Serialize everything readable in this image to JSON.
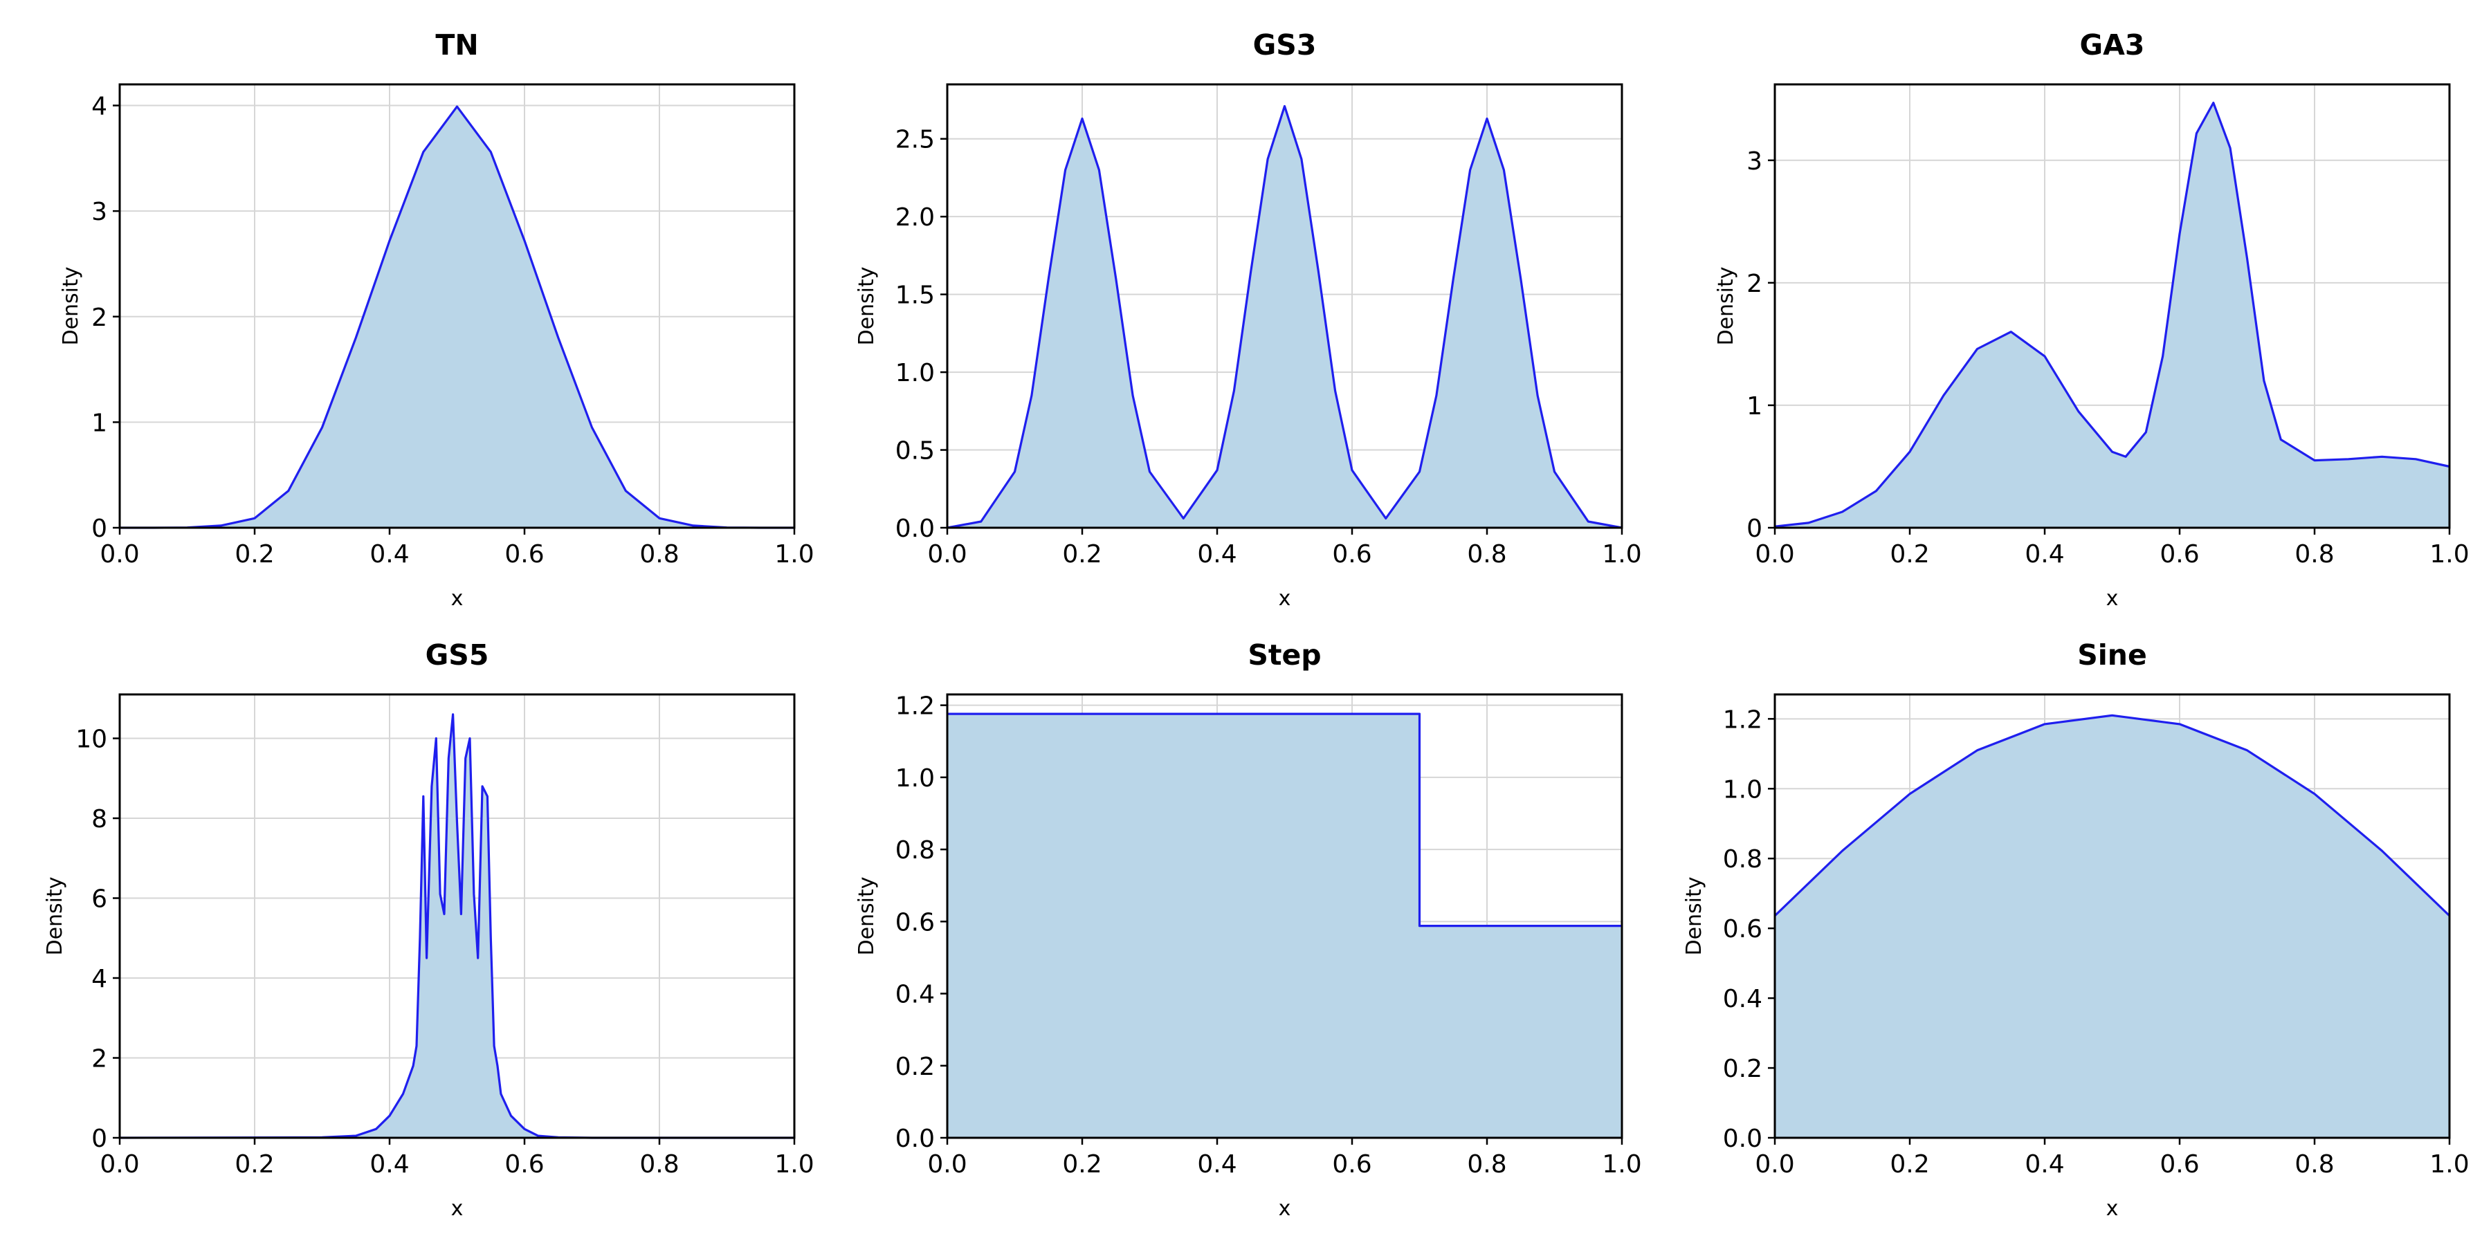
{
  "chart_data": [
    {
      "type": "area",
      "title": "TN",
      "xlabel": "x",
      "ylabel": "Density",
      "xlim": [
        0,
        1
      ],
      "ylim": [
        0,
        4.2
      ],
      "xticks": [
        "0.0",
        "0.2",
        "0.4",
        "0.6",
        "0.8",
        "1.0"
      ],
      "yticks": [
        "0",
        "1",
        "2",
        "3",
        "4"
      ],
      "grid": true,
      "series": [
        {
          "x": [
            0,
            0.05,
            0.1,
            0.15,
            0.2,
            0.25,
            0.3,
            0.35,
            0.4,
            0.45,
            0.5,
            0.55,
            0.6,
            0.65,
            0.7,
            0.75,
            0.8,
            0.85,
            0.9,
            0.95,
            1.0
          ],
          "y": [
            0.0,
            0.0,
            0.002,
            0.02,
            0.09,
            0.35,
            0.95,
            1.8,
            2.72,
            3.56,
            3.99,
            3.56,
            2.72,
            1.8,
            0.95,
            0.35,
            0.09,
            0.02,
            0.002,
            0.0,
            0.0
          ]
        }
      ]
    },
    {
      "type": "area",
      "title": "GS3",
      "xlabel": "x",
      "ylabel": "Density",
      "xlim": [
        0,
        1
      ],
      "ylim": [
        0,
        2.85
      ],
      "xticks": [
        "0.0",
        "0.2",
        "0.4",
        "0.6",
        "0.8",
        "1.0"
      ],
      "yticks": [
        "0.0",
        "0.5",
        "1.0",
        "1.5",
        "2.0",
        "2.5"
      ],
      "grid": true,
      "series": [
        {
          "x": [
            0,
            0.05,
            0.1,
            0.125,
            0.15,
            0.175,
            0.2,
            0.225,
            0.25,
            0.275,
            0.3,
            0.35,
            0.4,
            0.425,
            0.45,
            0.475,
            0.5,
            0.525,
            0.55,
            0.575,
            0.6,
            0.65,
            0.7,
            0.725,
            0.75,
            0.775,
            0.8,
            0.825,
            0.85,
            0.875,
            0.9,
            0.95,
            1.0
          ],
          "y": [
            0.0,
            0.04,
            0.36,
            0.85,
            1.6,
            2.3,
            2.63,
            2.3,
            1.6,
            0.85,
            0.36,
            0.06,
            0.37,
            0.88,
            1.65,
            2.37,
            2.71,
            2.37,
            1.65,
            0.88,
            0.37,
            0.06,
            0.36,
            0.85,
            1.6,
            2.3,
            2.63,
            2.3,
            1.6,
            0.85,
            0.36,
            0.04,
            0.0
          ]
        }
      ]
    },
    {
      "type": "area",
      "title": "GA3",
      "xlabel": "x",
      "ylabel": "Density",
      "xlim": [
        0,
        1
      ],
      "ylim": [
        0,
        3.62
      ],
      "xticks": [
        "0.0",
        "0.2",
        "0.4",
        "0.6",
        "0.8",
        "1.0"
      ],
      "yticks": [
        "0",
        "1",
        "2",
        "3"
      ],
      "grid": true,
      "series": [
        {
          "x": [
            0,
            0.05,
            0.1,
            0.15,
            0.2,
            0.25,
            0.3,
            0.35,
            0.4,
            0.45,
            0.5,
            0.52,
            0.55,
            0.575,
            0.6,
            0.625,
            0.65,
            0.675,
            0.7,
            0.725,
            0.75,
            0.8,
            0.85,
            0.9,
            0.95,
            1.0
          ],
          "y": [
            0.01,
            0.04,
            0.13,
            0.3,
            0.62,
            1.08,
            1.46,
            1.6,
            1.4,
            0.95,
            0.62,
            0.58,
            0.78,
            1.4,
            2.4,
            3.22,
            3.47,
            3.1,
            2.2,
            1.2,
            0.72,
            0.55,
            0.56,
            0.58,
            0.56,
            0.5
          ]
        }
      ]
    },
    {
      "type": "area",
      "title": "GS5",
      "xlabel": "x",
      "ylabel": "Density",
      "xlim": [
        0,
        1
      ],
      "ylim": [
        0,
        11.1
      ],
      "xticks": [
        "0.0",
        "0.2",
        "0.4",
        "0.6",
        "0.8",
        "1.0"
      ],
      "yticks": [
        "0",
        "2",
        "4",
        "6",
        "8",
        "10"
      ],
      "grid": true,
      "series": [
        {
          "x": [
            0,
            0.3,
            0.35,
            0.38,
            0.4,
            0.42,
            0.435,
            0.44,
            0.445,
            0.45,
            0.455,
            0.4625,
            0.469,
            0.475,
            0.481,
            0.4875,
            0.494,
            0.5,
            0.506,
            0.5125,
            0.519,
            0.525,
            0.531,
            0.5375,
            0.545,
            0.55,
            0.555,
            0.56,
            0.565,
            0.58,
            0.6,
            0.62,
            0.65,
            0.7,
            1.0
          ],
          "y": [
            0.0,
            0.01,
            0.05,
            0.22,
            0.55,
            1.1,
            1.8,
            2.3,
            5.0,
            8.55,
            4.5,
            8.8,
            10.0,
            6.1,
            5.6,
            9.5,
            10.6,
            7.9,
            5.6,
            9.5,
            10.0,
            6.1,
            4.5,
            8.8,
            8.55,
            5.0,
            2.3,
            1.8,
            1.1,
            0.55,
            0.22,
            0.05,
            0.01,
            0.0,
            0.0
          ]
        }
      ]
    },
    {
      "type": "area",
      "title": "Step",
      "xlabel": "x",
      "ylabel": "Density",
      "xlim": [
        0,
        1
      ],
      "ylim": [
        0,
        1.23
      ],
      "xticks": [
        "0.0",
        "0.2",
        "0.4",
        "0.6",
        "0.8",
        "1.0"
      ],
      "yticks": [
        "0.0",
        "0.2",
        "0.4",
        "0.6",
        "0.8",
        "1.0",
        "1.2"
      ],
      "grid": true,
      "series": [
        {
          "x": [
            0,
            0.7,
            0.7,
            1.0
          ],
          "y": [
            1.176,
            1.176,
            0.588,
            0.588
          ]
        }
      ]
    },
    {
      "type": "area",
      "title": "Sine",
      "xlabel": "x",
      "ylabel": "Density",
      "xlim": [
        0,
        1
      ],
      "ylim": [
        0,
        1.27
      ],
      "xticks": [
        "0.0",
        "0.2",
        "0.4",
        "0.6",
        "0.8",
        "1.0"
      ],
      "yticks": [
        "0.0",
        "0.2",
        "0.4",
        "0.6",
        "0.8",
        "1.0",
        "1.2"
      ],
      "grid": true,
      "series": [
        {
          "x": [
            0,
            0.1,
            0.2,
            0.3,
            0.4,
            0.5,
            0.6,
            0.7,
            0.8,
            0.9,
            1.0
          ],
          "y": [
            0.636,
            0.822,
            0.985,
            1.11,
            1.185,
            1.21,
            1.185,
            1.11,
            0.985,
            0.822,
            0.636
          ]
        }
      ]
    }
  ]
}
